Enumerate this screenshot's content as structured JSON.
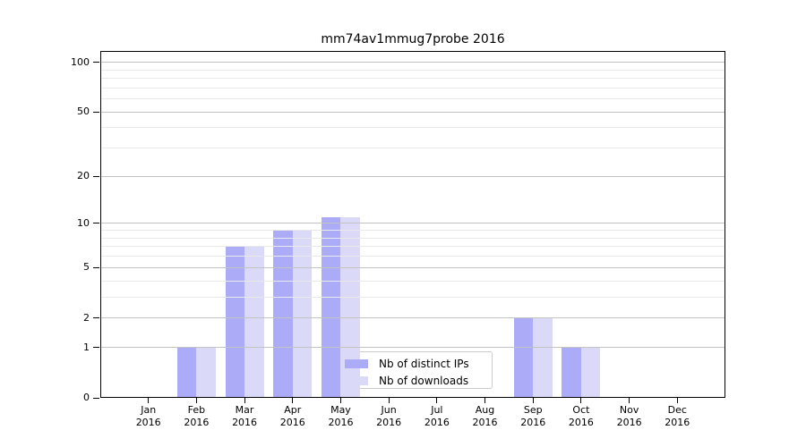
{
  "chart_data": {
    "type": "bar",
    "title": "mm74av1mmug7probe 2016",
    "categories": [
      "Jan 2016",
      "Feb 2016",
      "Mar 2016",
      "Apr 2016",
      "May 2016",
      "Jun 2016",
      "Jul 2016",
      "Aug 2016",
      "Sep 2016",
      "Oct 2016",
      "Nov 2016",
      "Dec 2016"
    ],
    "series": [
      {
        "name": "Nb of distinct IPs",
        "color": "#ababf7",
        "values": [
          0,
          1,
          7,
          9,
          11,
          0,
          0,
          0,
          2,
          1,
          0,
          0
        ]
      },
      {
        "name": "Nb of downloads",
        "color": "#dadaf8",
        "values": [
          0,
          1,
          7,
          9,
          11,
          0,
          0,
          0,
          2,
          1,
          0,
          0
        ]
      }
    ],
    "xlabel": "",
    "ylabel": "",
    "yscale": "log1p",
    "ylim": [
      0,
      117
    ],
    "yticks": [
      100,
      50,
      20,
      10,
      5,
      2,
      1,
      0
    ],
    "minor_gridlines": [
      3,
      4,
      6,
      7,
      8,
      9,
      30,
      40,
      60,
      70,
      80,
      90
    ],
    "grid": "horizontal",
    "legend_position": "lower-center"
  },
  "colors": {
    "major_gridline": "#c3c3c3",
    "minor_gridline": "#e9e9e9",
    "axis": "#000000",
    "legend_border": "#cbcbcb",
    "legend_bg": "#ffffff"
  }
}
